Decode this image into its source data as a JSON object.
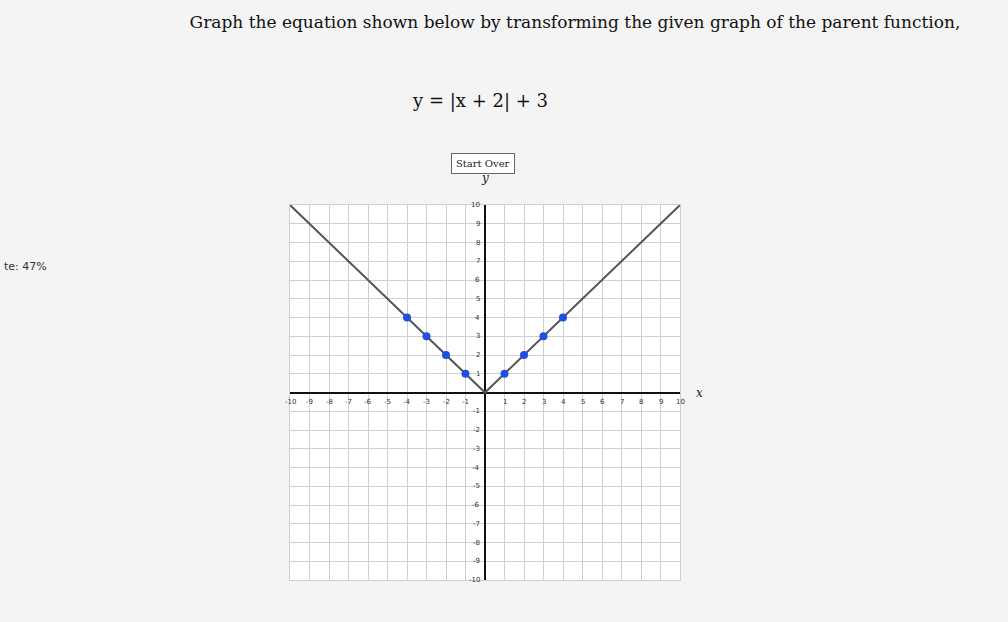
{
  "chart_data": {
    "type": "line",
    "title": "Graph the equation shown below by transforming the given graph of the parent function,",
    "subtitle": "y = |x + 2| + 3",
    "annotations": [
      "Start Over",
      "te: 47%"
    ],
    "x_label": "x",
    "y_label": "y",
    "xlim": [
      -10,
      10
    ],
    "ylim": [
      -10,
      10
    ],
    "xticks": [
      -10,
      -9,
      -8,
      -7,
      -6,
      -5,
      -4,
      -3,
      -2,
      -1,
      1,
      2,
      3,
      4,
      5,
      6,
      7,
      8,
      9,
      10
    ],
    "yticks": [
      -10,
      -9,
      -8,
      -7,
      -6,
      -5,
      -4,
      -3,
      -2,
      -1,
      1,
      2,
      3,
      4,
      5,
      6,
      7,
      8,
      9,
      10
    ],
    "grid": true,
    "series": [
      {
        "type": "line",
        "color": "#555555",
        "line_style": "solid",
        "x": [
          -10,
          0,
          10
        ],
        "values": [
          10,
          0,
          10
        ]
      },
      {
        "type": "scatter",
        "color": "#1f4fe0",
        "marker": "circle",
        "x": [
          -4,
          -3,
          -2,
          -1,
          1,
          2,
          3,
          4
        ],
        "values": [
          4,
          3,
          2,
          1,
          1,
          2,
          3,
          4
        ]
      }
    ]
  }
}
